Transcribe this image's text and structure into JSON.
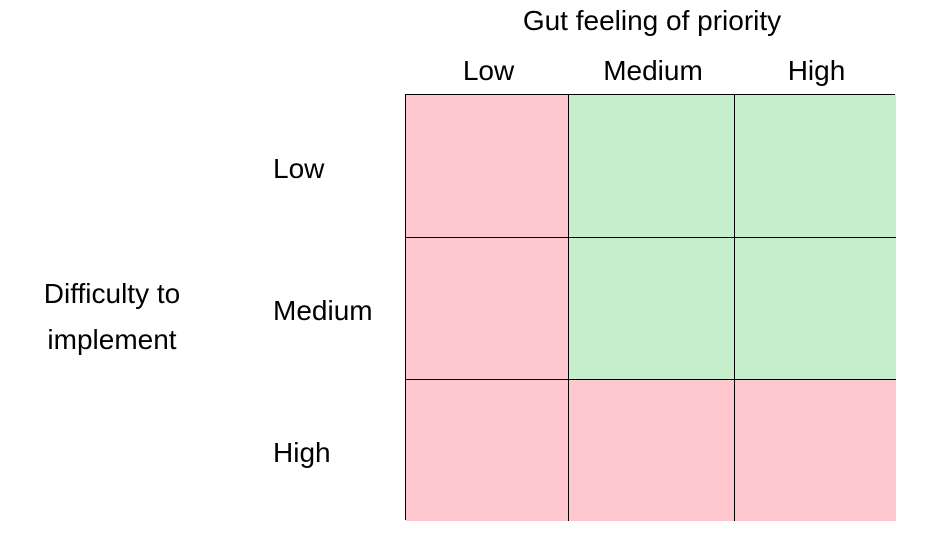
{
  "column_axis": {
    "title": "Gut feeling of priority",
    "labels": [
      "Low",
      "Medium",
      "High"
    ]
  },
  "row_axis": {
    "title_lines": [
      "Difficulty to",
      "implement"
    ],
    "labels": [
      "Low",
      "Medium",
      "High"
    ]
  },
  "colors": {
    "red": "#ffc7ce",
    "green": "#c6efce",
    "border": "#000000"
  },
  "cells": [
    [
      "red",
      "green",
      "green"
    ],
    [
      "red",
      "green",
      "green"
    ],
    [
      "red",
      "red",
      "red"
    ]
  ]
}
